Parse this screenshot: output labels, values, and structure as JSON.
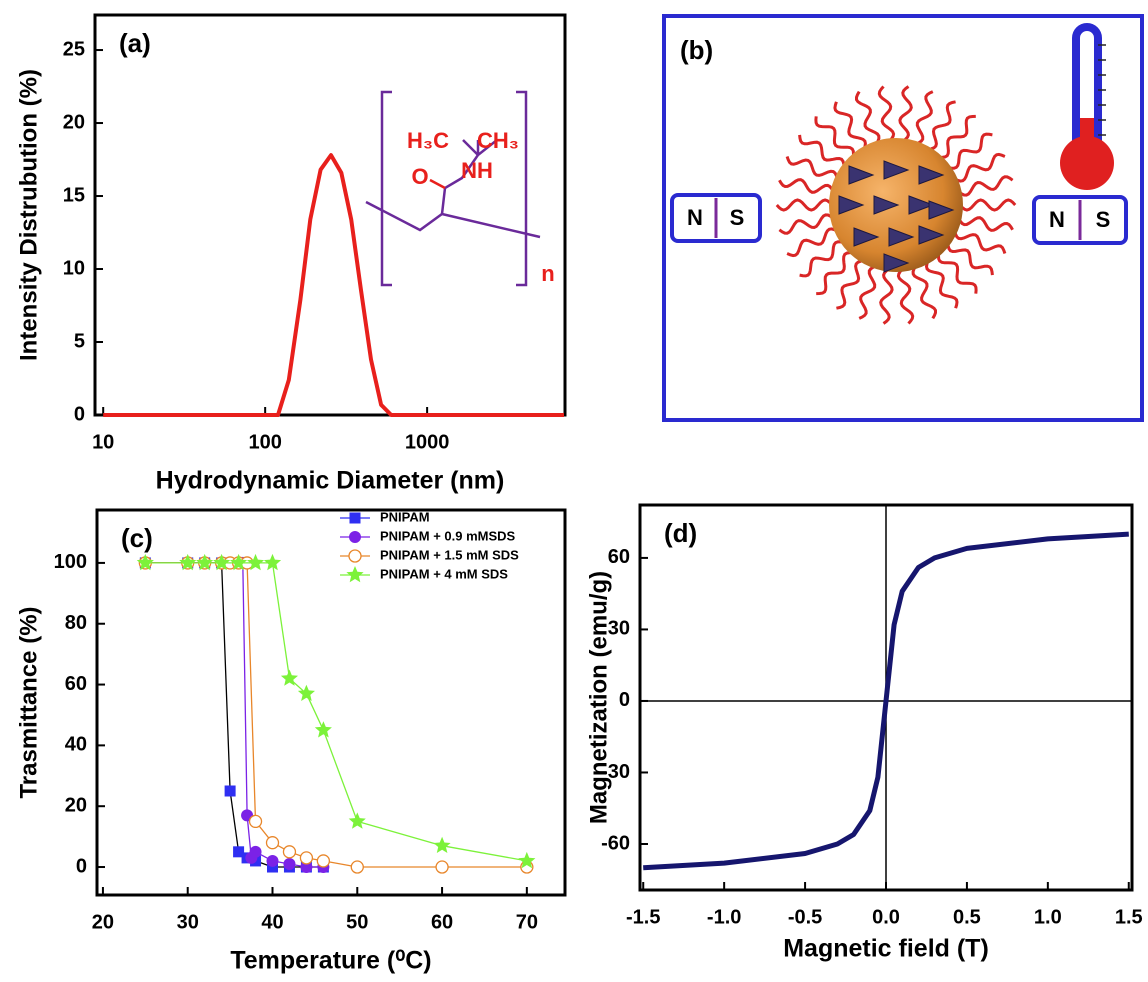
{
  "chart_data": [
    {
      "type": "line",
      "panel_label": "(a)",
      "x_label": "Hydrodynamic Diameter (nm)",
      "y_label": "Intensity Distrubution (%)",
      "log_x": true,
      "xlim": [
        8.9,
        7100
      ],
      "ylim": [
        0,
        27.4
      ],
      "xticks": [
        10,
        100,
        1000
      ],
      "yticks": [
        0,
        5,
        10,
        15,
        20,
        25
      ],
      "x": [
        10,
        120,
        140,
        165,
        190,
        220,
        255,
        295,
        340,
        390,
        450,
        520,
        600,
        7000
      ],
      "series": [
        {
          "color": "#e8201c",
          "values": [
            0,
            0,
            2.4,
            7.9,
            13.4,
            16.8,
            17.8,
            16.6,
            13.4,
            8.6,
            3.8,
            0.7,
            0,
            0
          ]
        }
      ],
      "annotations": {
        "left_methyl": "H₃C",
        "right_methyl": "CH₃",
        "oxygen": "O",
        "amine": "NH",
        "repeat": "n"
      }
    },
    {
      "type": "line",
      "panel_label": "(c)",
      "x_label": "Temperature (⁰C)",
      "y_label": "Trasmittance (%)",
      "xlim": [
        19.3,
        74.5
      ],
      "ylim": [
        -9.2,
        117.4
      ],
      "xticks": [
        20,
        30,
        40,
        50,
        60,
        70
      ],
      "yticks": [
        0,
        20,
        40,
        60,
        80,
        100
      ],
      "series": [
        {
          "name": "PNIPAM",
          "color": "#2f2ff2",
          "line_color": "#000000",
          "marker": "square",
          "x": [
            25,
            30,
            32,
            34,
            35,
            36,
            37,
            38,
            40,
            42,
            44,
            46
          ],
          "values": [
            100,
            100,
            100,
            100,
            25,
            5,
            3,
            2,
            0,
            0,
            0,
            0
          ]
        },
        {
          "name": "PNIPAM + 0.9 mMSDS",
          "color": "#7b22e6",
          "marker": "circle",
          "x": [
            25,
            30,
            32,
            34,
            35,
            36,
            36.5,
            37,
            37.5,
            38,
            40,
            42,
            44,
            46
          ],
          "values": [
            100,
            100,
            100,
            100,
            100,
            100,
            100,
            17,
            3,
            5,
            2,
            1,
            0,
            0
          ]
        },
        {
          "name": "PNIPAM + 1.5 mM SDS",
          "color": "#e8862a",
          "marker": "open-circle",
          "x": [
            25,
            30,
            32,
            34,
            35,
            36,
            37,
            38,
            40,
            42,
            44,
            46,
            50,
            60,
            70
          ],
          "values": [
            100,
            100,
            100,
            100,
            100,
            100,
            100,
            15,
            8,
            5,
            3,
            2,
            0,
            0,
            0
          ]
        },
        {
          "name": "PNIPAM + 4 mM SDS",
          "color": "#7cf23a",
          "marker": "star",
          "x": [
            25,
            30,
            32,
            34,
            36,
            38,
            40,
            42,
            44,
            46,
            50,
            60,
            70
          ],
          "values": [
            100,
            100,
            100,
            100,
            100,
            100,
            100,
            62,
            57,
            45,
            15,
            7,
            2
          ]
        }
      ]
    },
    {
      "type": "line",
      "panel_label": "(d)",
      "x_label": "Magnetic field (T)",
      "y_label": "Magnetization (emu/g)",
      "xlim": [
        -1.52,
        1.52
      ],
      "ylim": [
        -79.3,
        82.2
      ],
      "zero_lines": true,
      "xticks": [
        -1.5,
        {
          "value": -1,
          "label": "-1.0"
        },
        -0.5,
        {
          "value": 0,
          "label": "0.0"
        },
        0.5,
        {
          "value": 1,
          "label": "1.0"
        },
        1.5
      ],
      "yticks": [
        -60,
        -30,
        0,
        30,
        60
      ],
      "x": [
        -1.5,
        -1.0,
        -0.5,
        -0.3,
        -0.2,
        -0.1,
        -0.05,
        0,
        0.05,
        0.1,
        0.2,
        0.3,
        0.5,
        1.0,
        1.5
      ],
      "series": [
        {
          "color": "#16166e",
          "values": [
            -70,
            -68,
            -64,
            -60,
            -56,
            -46,
            -32,
            0,
            32,
            46,
            56,
            60,
            64,
            68,
            70
          ]
        }
      ]
    }
  ],
  "diagram": {
    "panel_label": "(b)",
    "left_magnet": {
      "north": "N",
      "south": "S"
    },
    "right_magnet": {
      "north": "N",
      "south": "S"
    }
  }
}
